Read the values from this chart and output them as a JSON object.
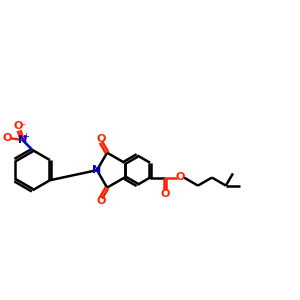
{
  "bg_color": "#ffffff",
  "bond_color": "#000000",
  "oxygen_color": "#ff2200",
  "nitrogen_color": "#0000cc",
  "line_width": 1.8,
  "dbo": 0.05,
  "figsize": [
    3.0,
    3.0
  ],
  "dpi": 100,
  "xlim": [
    -3.5,
    7.5
  ],
  "ylim": [
    -3.0,
    4.5
  ]
}
